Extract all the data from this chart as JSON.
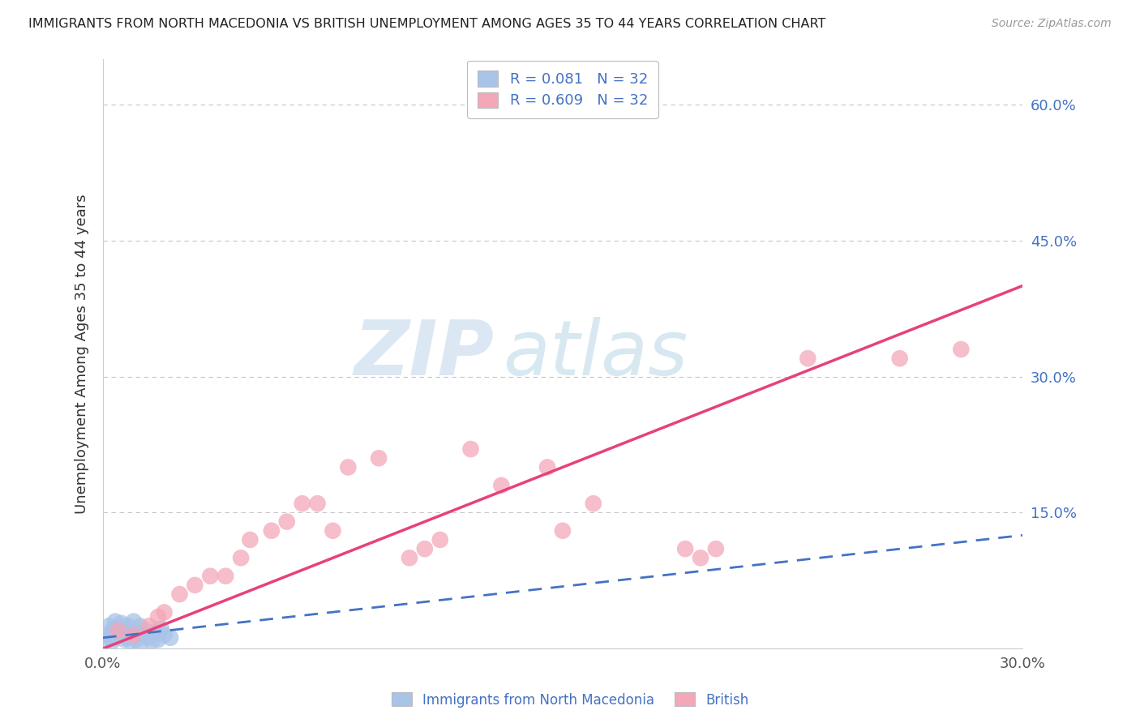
{
  "title": "IMMIGRANTS FROM NORTH MACEDONIA VS BRITISH UNEMPLOYMENT AMONG AGES 35 TO 44 YEARS CORRELATION CHART",
  "source": "Source: ZipAtlas.com",
  "ylabel": "Unemployment Among Ages 35 to 44 years",
  "xmin": 0.0,
  "xmax": 0.3,
  "ymin": 0.0,
  "ymax": 0.65,
  "x_ticks": [
    0.0,
    0.05,
    0.1,
    0.15,
    0.2,
    0.25,
    0.3
  ],
  "y_ticks_right": [
    0.0,
    0.15,
    0.3,
    0.45,
    0.6
  ],
  "y_tick_labels_right": [
    "",
    "15.0%",
    "30.0%",
    "45.0%",
    "60.0%"
  ],
  "legend_labels": [
    "Immigrants from North Macedonia",
    "British"
  ],
  "r_macedonia": 0.081,
  "n_macedonia": 32,
  "r_british": 0.609,
  "n_british": 32,
  "scatter_color_macedonia": "#a8c4e8",
  "scatter_color_british": "#f4a7b9",
  "line_color_macedonia": "#4472c4",
  "line_color_british": "#e8417a",
  "text_color_blue": "#4472c4",
  "background_color": "#ffffff",
  "grid_color": "#c8c8c8",
  "watermark_zip": "ZIP",
  "watermark_atlas": "atlas",
  "scatter_macedonia_x": [
    0.001,
    0.002,
    0.002,
    0.003,
    0.003,
    0.004,
    0.004,
    0.005,
    0.005,
    0.006,
    0.006,
    0.007,
    0.007,
    0.008,
    0.008,
    0.009,
    0.009,
    0.01,
    0.01,
    0.011,
    0.011,
    0.012,
    0.012,
    0.013,
    0.014,
    0.015,
    0.016,
    0.017,
    0.018,
    0.019,
    0.02,
    0.022
  ],
  "scatter_macedonia_y": [
    0.01,
    0.015,
    0.025,
    0.008,
    0.02,
    0.012,
    0.03,
    0.018,
    0.022,
    0.014,
    0.028,
    0.01,
    0.016,
    0.025,
    0.012,
    0.02,
    0.008,
    0.015,
    0.03,
    0.018,
    0.01,
    0.025,
    0.005,
    0.015,
    0.02,
    0.012,
    0.008,
    0.018,
    0.01,
    0.022,
    0.015,
    0.012
  ],
  "scatter_british_x": [
    0.005,
    0.01,
    0.015,
    0.018,
    0.02,
    0.025,
    0.03,
    0.035,
    0.04,
    0.045,
    0.048,
    0.055,
    0.06,
    0.065,
    0.07,
    0.075,
    0.08,
    0.09,
    0.1,
    0.105,
    0.11,
    0.12,
    0.13,
    0.145,
    0.15,
    0.16,
    0.19,
    0.195,
    0.2,
    0.23,
    0.26,
    0.28
  ],
  "scatter_british_y": [
    0.02,
    0.015,
    0.025,
    0.035,
    0.04,
    0.06,
    0.07,
    0.08,
    0.08,
    0.1,
    0.12,
    0.13,
    0.14,
    0.16,
    0.16,
    0.13,
    0.2,
    0.21,
    0.1,
    0.11,
    0.12,
    0.22,
    0.18,
    0.2,
    0.13,
    0.16,
    0.11,
    0.1,
    0.11,
    0.32,
    0.32,
    0.33
  ],
  "brit_line_x0": 0.0,
  "brit_line_y0": 0.0,
  "brit_line_x1": 0.3,
  "brit_line_y1": 0.4,
  "mac_line_x0": 0.0,
  "mac_line_y0": 0.012,
  "mac_line_x1": 0.3,
  "mac_line_y1": 0.125
}
